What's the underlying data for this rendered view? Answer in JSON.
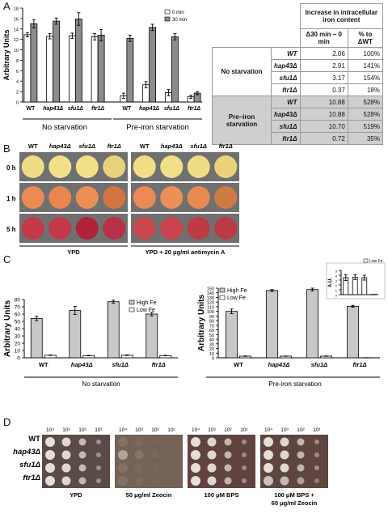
{
  "panels": {
    "a": "A",
    "b": "B",
    "c": "C",
    "d": "D"
  },
  "chart_data": [
    {
      "type": "bar",
      "panel": "A",
      "ylabel": "Arbitrary Units",
      "ylim": [
        0,
        18
      ],
      "yticks": [
        0,
        2,
        4,
        6,
        8,
        10,
        12,
        14,
        16,
        18
      ],
      "categories": [
        "WT",
        "hap43Δ",
        "sfu1Δ",
        "ftr1Δ",
        "WT",
        "hap43Δ",
        "sfu1Δ",
        "ftr1Δ"
      ],
      "groups": [
        "No starvation",
        "Pre-iron starvation"
      ],
      "legend": [
        "0 min",
        "30 min"
      ],
      "series": [
        {
          "name": "0 min",
          "color": "#ffffff",
          "values": [
            12.9,
            12.6,
            12.7,
            12.5,
            1.2,
            3.3,
            1.8,
            1.0
          ]
        },
        {
          "name": "30 min",
          "color": "#8c8c8c",
          "values": [
            15.0,
            15.5,
            15.9,
            12.8,
            12.2,
            14.3,
            12.5,
            1.7
          ]
        }
      ],
      "errors": [
        [
          0.4,
          0.5,
          0.5,
          0.6,
          0.5,
          0.6,
          0.6,
          0.3
        ],
        [
          0.8,
          0.6,
          1.2,
          1.1,
          0.6,
          0.6,
          0.6,
          0.3
        ]
      ]
    },
    {
      "type": "bar",
      "panel": "C-left",
      "ylabel": "Arbitrary Units",
      "ylim": [
        0,
        80
      ],
      "yticks": [
        0,
        10,
        20,
        30,
        40,
        50,
        60,
        70,
        80
      ],
      "categories": [
        "WT",
        "hap43Δ",
        "sfu1Δ",
        "ftr1Δ"
      ],
      "group": "No starvation",
      "legend": [
        "High Fe",
        "Low Fe"
      ],
      "series": [
        {
          "name": "High Fe",
          "color": "#c8c8c8",
          "values": [
            54,
            65,
            77,
            60
          ]
        },
        {
          "name": "Low Fe",
          "color": "#ffffff",
          "values": [
            3.5,
            3,
            3.5,
            3
          ]
        }
      ],
      "errors": [
        [
          3,
          5.5,
          2,
          2.5
        ],
        [
          0.3,
          0.3,
          0.4,
          0.3
        ]
      ]
    },
    {
      "type": "bar",
      "panel": "C-right",
      "ylabel": "Arbitrary Units",
      "ylim": [
        0,
        150
      ],
      "yticks": [
        0,
        10,
        20,
        30,
        40,
        50,
        60,
        70,
        80,
        90,
        100,
        110,
        120,
        130,
        140,
        150
      ],
      "categories": [
        "WT",
        "hap43Δ",
        "sfu1Δ",
        "ftr1Δ"
      ],
      "group": "Pre-iron starvation",
      "legend": [
        "High Fe",
        "Low Fe"
      ],
      "series": [
        {
          "name": "High Fe",
          "color": "#c8c8c8",
          "values": [
            100,
            145,
            147,
            111
          ]
        },
        {
          "name": "Low Fe",
          "color": "#ffffff",
          "values": [
            3.5,
            3.5,
            3.5,
            0.2
          ]
        }
      ],
      "errors": [
        [
          5,
          2,
          3,
          2
        ],
        [
          0.5,
          0.3,
          0.4,
          0.1
        ]
      ]
    },
    {
      "type": "bar",
      "panel": "C-inset",
      "ylabel": "A.U.",
      "ylim": [
        0,
        5
      ],
      "yticks": [
        0,
        1,
        2,
        3,
        4,
        5
      ],
      "categories": [
        "WT",
        "hap43Δ",
        "sfu1Δ",
        "ftr1Δ"
      ],
      "legend": [
        "Low Fe"
      ],
      "series": [
        {
          "name": "Low Fe",
          "color": "#ffffff",
          "values": [
            3.5,
            3.6,
            3.5,
            0.05
          ]
        }
      ],
      "errors": [
        [
          0.6,
          0.5,
          0.5,
          0
        ]
      ]
    }
  ],
  "table": {
    "header_main": "Increase in intracellular iron content",
    "header_delta": "Δ30 min − 0 min",
    "header_pct": "% to ΔWT",
    "groups": [
      {
        "label": "No starvation",
        "shaded": false,
        "rows": [
          {
            "strain": "WT",
            "delta": "2.06",
            "pct": "100%"
          },
          {
            "strain": "hap43Δ",
            "delta": "2.91",
            "pct": "141%"
          },
          {
            "strain": "sfu1Δ",
            "delta": "3.17",
            "pct": "154%"
          },
          {
            "strain": "ftr1Δ",
            "delta": "0.37",
            "pct": "18%"
          }
        ]
      },
      {
        "label": "Pre–iron starvation",
        "shaded": true,
        "rows": [
          {
            "strain": "WT",
            "delta": "10.88",
            "pct": "528%"
          },
          {
            "strain": "hap43Δ",
            "delta": "10.88",
            "pct": "528%"
          },
          {
            "strain": "sfu1Δ",
            "delta": "10.70",
            "pct": "519%"
          },
          {
            "strain": "ftr1Δ",
            "delta": "0.72",
            "pct": "35%"
          }
        ]
      }
    ]
  },
  "panel_b": {
    "columns": [
      "WT",
      "hap43Δ",
      "sfu1Δ",
      "ftr1Δ",
      "WT",
      "hap43Δ",
      "sfu1Δ",
      "ftr1Δ"
    ],
    "rows": [
      "0 h",
      "1 h",
      "5 h"
    ],
    "conditions": [
      "YPD",
      "YPD + 20 μg/ml antimycin A"
    ],
    "colors": [
      [
        "#f0dc84",
        "#f2e08c",
        "#f2df88",
        "#e8d27a",
        "#f0dd86",
        "#f1df8a",
        "#f0dc84",
        "#e9d27a"
      ],
      [
        "#ea8a55",
        "#e9854f",
        "#ec8f55",
        "#d4743f",
        "#ea8a55",
        "#ec9058",
        "#e98a52",
        "#cf7a45"
      ],
      [
        "#c43848",
        "#c4384a",
        "#b02238",
        "#b83048",
        "#c84a50",
        "#c94450",
        "#c03a46",
        "#bc3a48"
      ]
    ]
  },
  "panel_d": {
    "strains": [
      "WT",
      "hap43Δ",
      "sfu1Δ",
      "ftr1Δ"
    ],
    "dilutions": [
      "10⁴",
      "10³",
      "10²",
      "10¹"
    ],
    "conditions": [
      "YPD",
      "50 μg/ml Zeocin",
      "100 μM BPS",
      "100 μM BPS + 60 μg/ml Zeocin"
    ],
    "backgrounds": [
      "#5a4a48",
      "#736255",
      "#60433f",
      "#5e4540"
    ]
  }
}
